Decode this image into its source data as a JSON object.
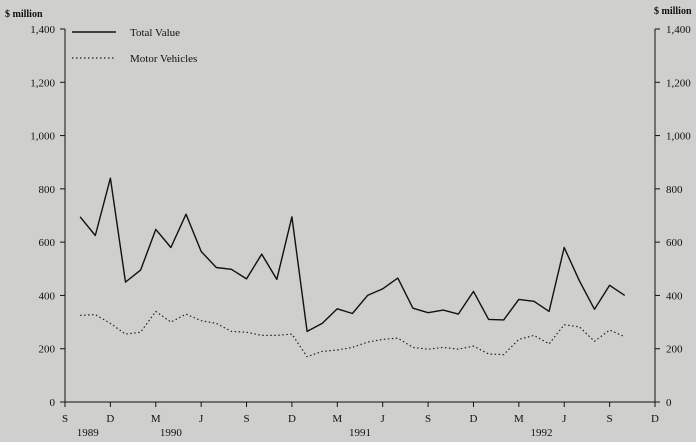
{
  "chart_data": {
    "type": "line",
    "title": "",
    "ylabel_left": "$ million",
    "ylabel_right": "$ million",
    "ylim": [
      0,
      1400
    ],
    "yticks": [
      0,
      200,
      400,
      600,
      800,
      1000,
      1200,
      1400
    ],
    "ytick_labels": [
      "0",
      "200",
      "400",
      "600",
      "800",
      "1,000",
      "1,200",
      "1,400"
    ],
    "x_range": [
      0,
      39
    ],
    "x_month_ticks": [
      {
        "pos": 0,
        "label": "S"
      },
      {
        "pos": 3,
        "label": "D"
      },
      {
        "pos": 6,
        "label": "M"
      },
      {
        "pos": 9,
        "label": "J"
      },
      {
        "pos": 12,
        "label": "S"
      },
      {
        "pos": 15,
        "label": "D"
      },
      {
        "pos": 18,
        "label": "M"
      },
      {
        "pos": 21,
        "label": "J"
      },
      {
        "pos": 24,
        "label": "S"
      },
      {
        "pos": 27,
        "label": "D"
      },
      {
        "pos": 30,
        "label": "M"
      },
      {
        "pos": 33,
        "label": "J"
      },
      {
        "pos": 36,
        "label": "S"
      },
      {
        "pos": 39,
        "label": "D"
      }
    ],
    "x_year_labels": [
      {
        "pos": 1.5,
        "label": "1989"
      },
      {
        "pos": 7,
        "label": "1990"
      },
      {
        "pos": 19.5,
        "label": "1991"
      },
      {
        "pos": 31.5,
        "label": "1992"
      }
    ],
    "x": [
      1,
      2,
      3,
      4,
      5,
      6,
      7,
      8,
      9,
      10,
      11,
      12,
      13,
      14,
      15,
      16,
      17,
      18,
      19,
      20,
      21,
      22,
      23,
      24,
      25,
      26,
      27,
      28,
      29,
      30,
      31,
      32,
      33,
      34,
      35,
      36,
      37
    ],
    "series": [
      {
        "name": "Total Value",
        "style": "solid",
        "values": [
          695,
          625,
          840,
          450,
          495,
          648,
          580,
          705,
          565,
          505,
          498,
          462,
          555,
          460,
          695,
          265,
          295,
          350,
          332,
          400,
          425,
          465,
          352,
          335,
          345,
          330,
          415,
          310,
          308,
          385,
          378,
          340,
          580,
          455,
          348,
          438,
          400
        ]
      },
      {
        "name": "Motor Vehicles",
        "style": "dotted",
        "values": [
          325,
          328,
          295,
          255,
          262,
          340,
          300,
          330,
          305,
          295,
          265,
          262,
          250,
          250,
          255,
          170,
          190,
          195,
          205,
          225,
          235,
          240,
          205,
          198,
          205,
          198,
          210,
          180,
          178,
          235,
          250,
          218,
          290,
          282,
          228,
          270,
          245
        ]
      }
    ],
    "legend_position": "top-left",
    "grid": false
  }
}
